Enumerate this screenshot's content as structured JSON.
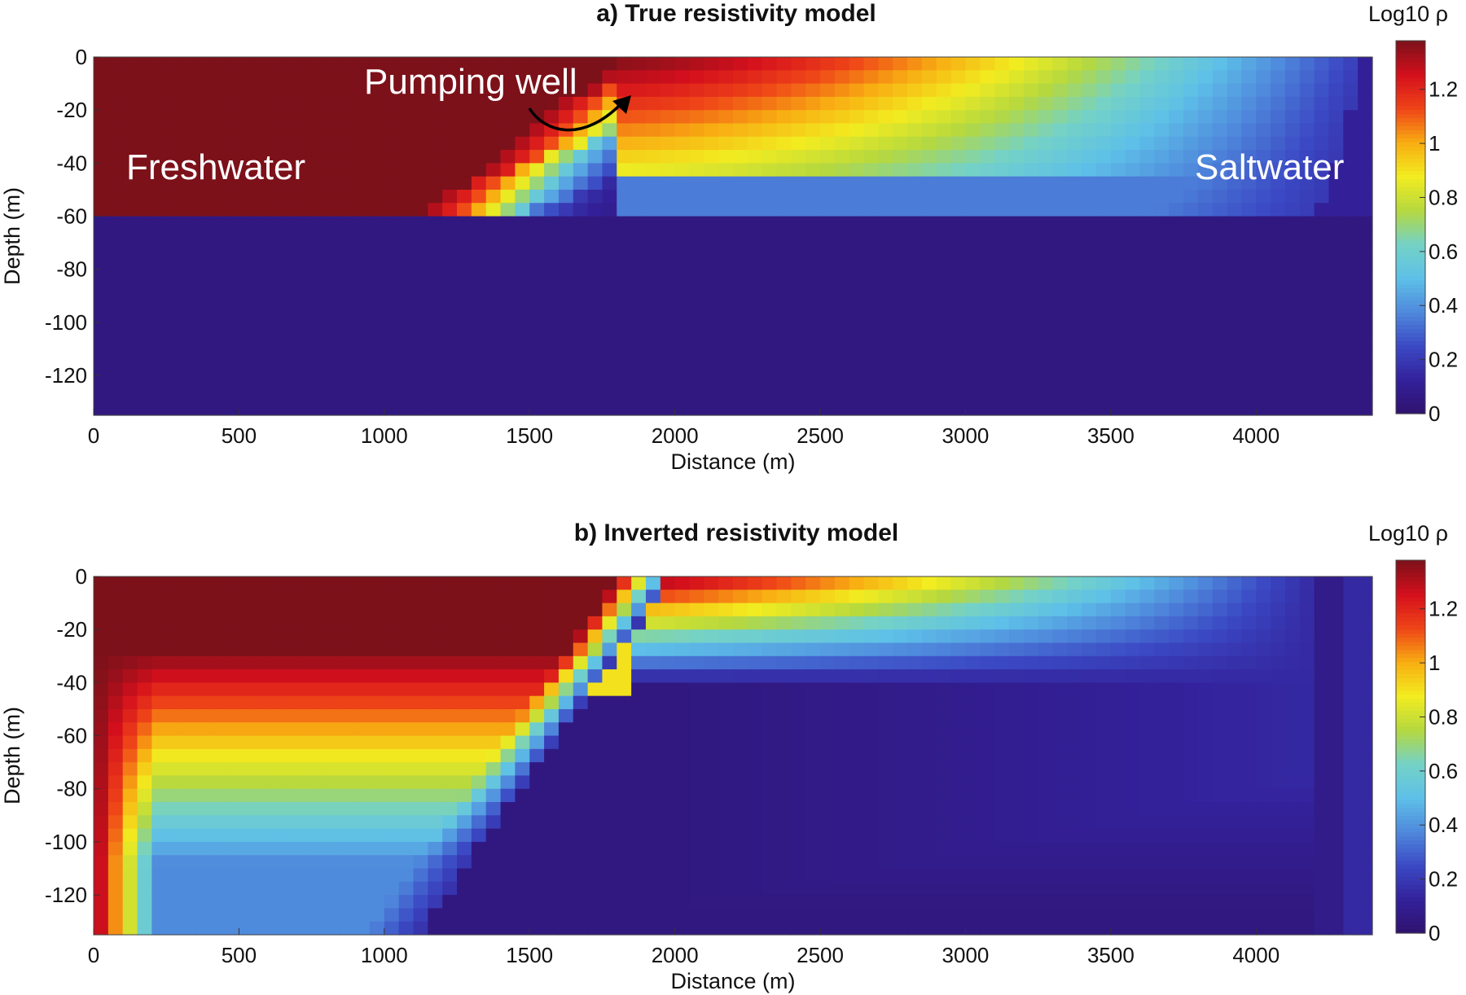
{
  "colormap": [
    "#30126e",
    "#33219a",
    "#3b49c4",
    "#4f89dc",
    "#5ec0e8",
    "#74d2c6",
    "#b5d83f",
    "#f2ec20",
    "#f8ad12",
    "#ef4418",
    "#d40f1c",
    "#7c111a"
  ],
  "chart_data": [
    {
      "type": "heatmap",
      "title": "a) True resistivity model",
      "xlabel": "Distance (m)",
      "ylabel": "Depth (m)",
      "xlim": [
        0,
        4400
      ],
      "ylim": [
        -135,
        0
      ],
      "xticks": [
        "0",
        "500",
        "1000",
        "1500",
        "2000",
        "2500",
        "3000",
        "3500",
        "4000"
      ],
      "yticks": [
        "0",
        "-20",
        "-40",
        "-60",
        "-80",
        "-100",
        "-120"
      ],
      "colorbar": {
        "label": "Log10 ρ",
        "range": [
          0,
          1.38
        ],
        "ticks": [
          "0",
          "0.2",
          "0.4",
          "0.6",
          "0.8",
          "1",
          "1.2"
        ]
      },
      "annotations": {
        "freshwater": "Freshwater",
        "saltwater": "Saltwater",
        "well": "Pumping well"
      },
      "model": "true"
    },
    {
      "type": "heatmap",
      "title": "b) Inverted resistivity model",
      "xlabel": "Distance (m)",
      "ylabel": "Depth (m)",
      "xlim": [
        0,
        4400
      ],
      "ylim": [
        -135,
        0
      ],
      "xticks": [
        "0",
        "500",
        "1000",
        "1500",
        "2000",
        "2500",
        "3000",
        "3500",
        "4000"
      ],
      "yticks": [
        "0",
        "-20",
        "-40",
        "-60",
        "-80",
        "-100",
        "-120"
      ],
      "colorbar": {
        "label": "Log10 ρ",
        "range": [
          0,
          1.38
        ],
        "ticks": [
          "0",
          "0.2",
          "0.4",
          "0.6",
          "0.8",
          "1",
          "1.2"
        ]
      },
      "model": "inverted"
    }
  ]
}
